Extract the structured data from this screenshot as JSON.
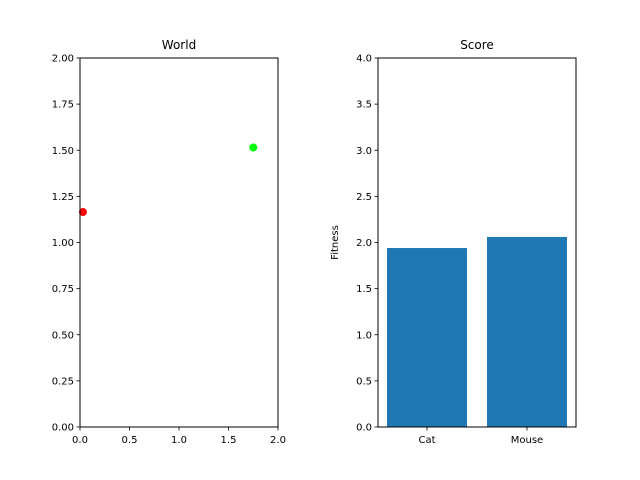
{
  "chart_data": [
    {
      "type": "scatter",
      "title": "World",
      "xlabel": "",
      "ylabel": "",
      "xlim": [
        0,
        2
      ],
      "ylim": [
        0,
        2
      ],
      "xticks": [
        "0.0",
        "0.5",
        "1.0",
        "1.5",
        "2.0"
      ],
      "yticks": [
        "0.00",
        "0.25",
        "0.50",
        "0.75",
        "1.00",
        "1.25",
        "1.50",
        "1.75",
        "2.00"
      ],
      "grid": false,
      "points": [
        {
          "x": 0.03,
          "y": 1.165,
          "color": "#ff0000"
        },
        {
          "x": 1.75,
          "y": 1.515,
          "color": "#00ff00"
        }
      ]
    },
    {
      "type": "bar",
      "title": "Score",
      "xlabel": "",
      "ylabel": "Fitness",
      "ylim": [
        0,
        4
      ],
      "yticks": [
        "0.0",
        "0.5",
        "1.0",
        "1.5",
        "2.0",
        "2.5",
        "3.0",
        "3.5",
        "4.0"
      ],
      "grid": false,
      "categories": [
        "Cat",
        "Mouse"
      ],
      "values": [
        1.94,
        2.06
      ],
      "color": "#1f77b4"
    }
  ]
}
